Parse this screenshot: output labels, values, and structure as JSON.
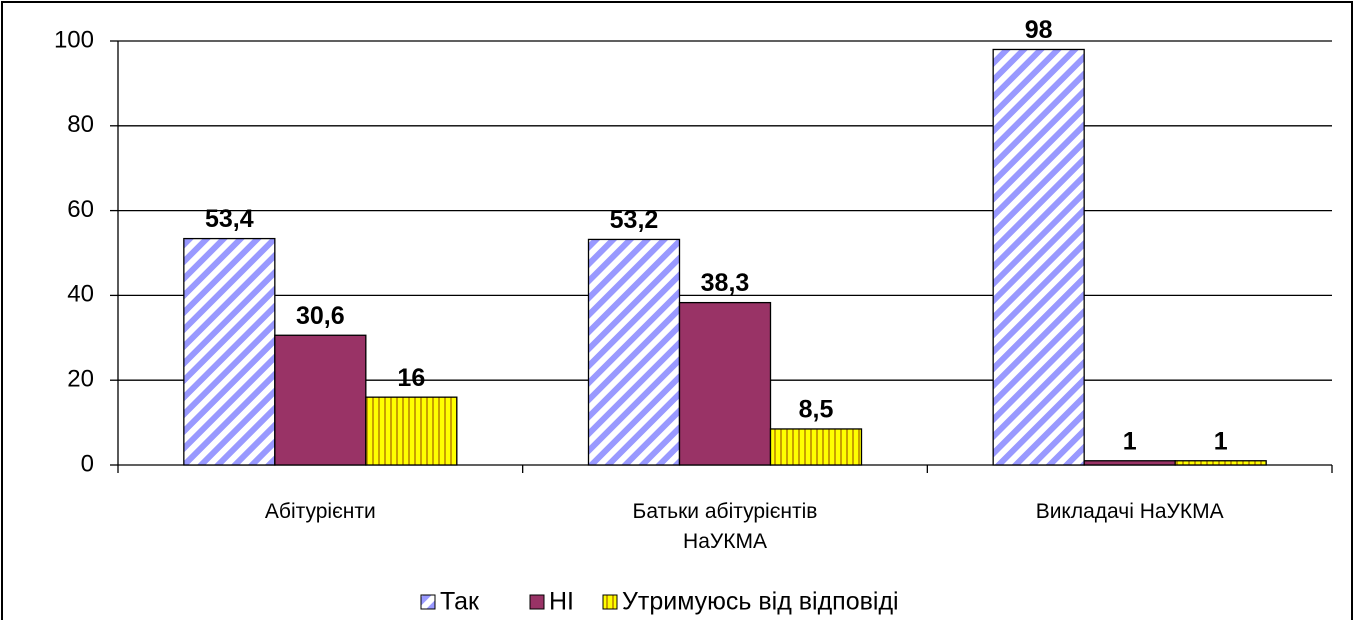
{
  "chart_data": {
    "type": "bar",
    "categories": [
      "Абітурієнти",
      "Батьки абітурієнтів НаУКМА",
      "Викладачі НаУКМА"
    ],
    "series": [
      {
        "name": "Так",
        "color": "#9999ff",
        "pattern": "diagonal",
        "values": [
          53.4,
          53.2,
          98
        ],
        "value_labels": [
          "53,4",
          "53,2",
          "98"
        ]
      },
      {
        "name": "НІ",
        "color": "#993366",
        "pattern": "solid",
        "values": [
          30.6,
          38.3,
          1
        ],
        "value_labels": [
          "30,6",
          "38,3",
          "1"
        ]
      },
      {
        "name": "Утримуюсь від відповіді",
        "color": "#ffff00",
        "pattern": "vertical",
        "values": [
          16,
          8.5,
          1
        ],
        "value_labels": [
          "16",
          "8,5",
          "1"
        ]
      }
    ],
    "ylim": [
      0,
      100
    ],
    "yticks": [
      0,
      20,
      40,
      60,
      80,
      100
    ],
    "grid": true,
    "legend": "bottom"
  }
}
